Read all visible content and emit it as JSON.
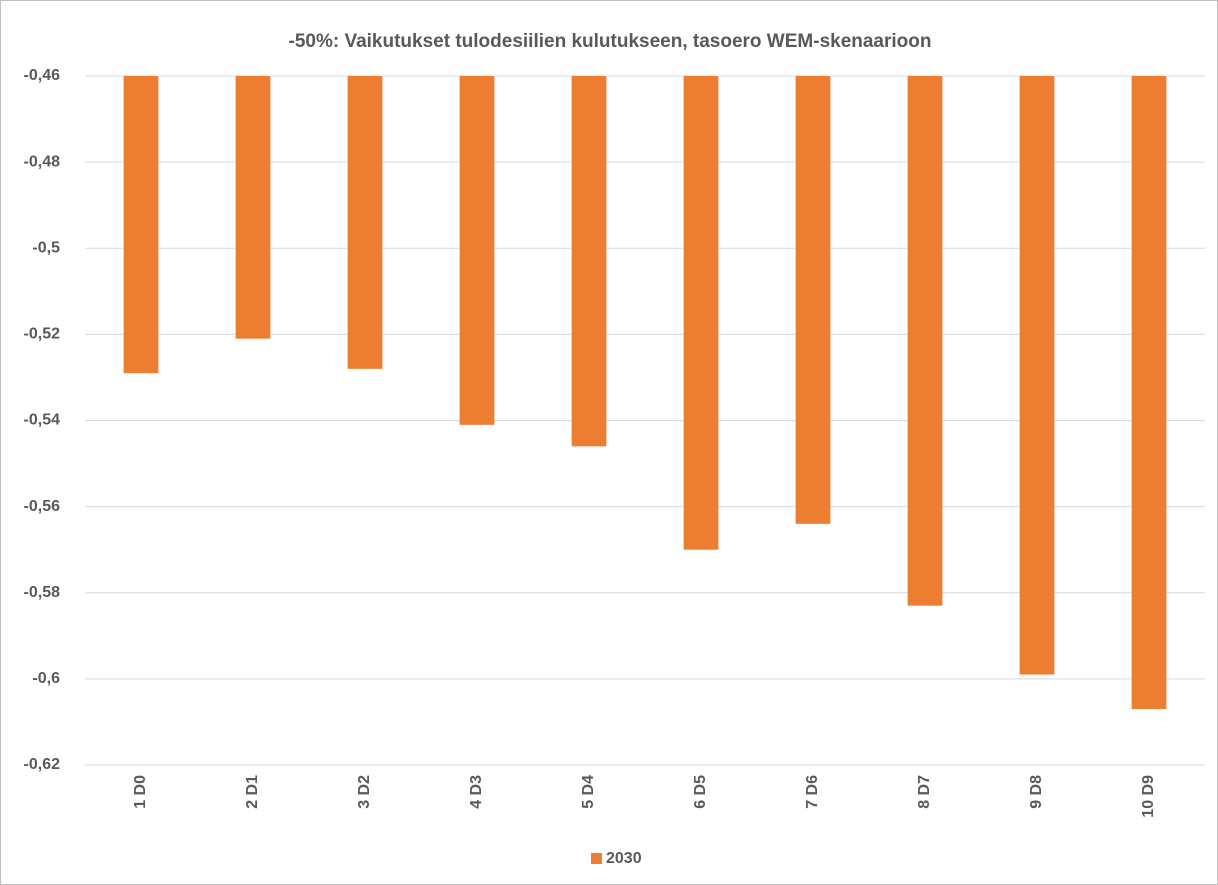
{
  "chart_data": {
    "type": "bar",
    "title": "-50%: Vaikutukset tulodesiilien kulutukseen, tasoero WEM-skenaarioon",
    "categories": [
      "1 D0",
      "2 D1",
      "3 D2",
      "4 D3",
      "5 D4",
      "6 D5",
      "7 D6",
      "8 D7",
      "9 D8",
      "10 D9"
    ],
    "series": [
      {
        "name": "2030",
        "color": "#ed7d31",
        "values": [
          -0.529,
          -0.521,
          -0.528,
          -0.541,
          -0.546,
          -0.57,
          -0.564,
          -0.583,
          -0.599,
          -0.607
        ]
      }
    ],
    "ylim": [
      -0.62,
      -0.46
    ],
    "yticks": [
      {
        "value": -0.46,
        "label": "-0,46"
      },
      {
        "value": -0.48,
        "label": "-0,48"
      },
      {
        "value": -0.5,
        "label": "-0,5"
      },
      {
        "value": -0.52,
        "label": "-0,52"
      },
      {
        "value": -0.54,
        "label": "-0,54"
      },
      {
        "value": -0.56,
        "label": "-0,56"
      },
      {
        "value": -0.58,
        "label": "-0,58"
      },
      {
        "value": -0.6,
        "label": "-0,6"
      },
      {
        "value": -0.62,
        "label": "-0,62"
      }
    ],
    "grid": true,
    "legend": "bottom"
  }
}
